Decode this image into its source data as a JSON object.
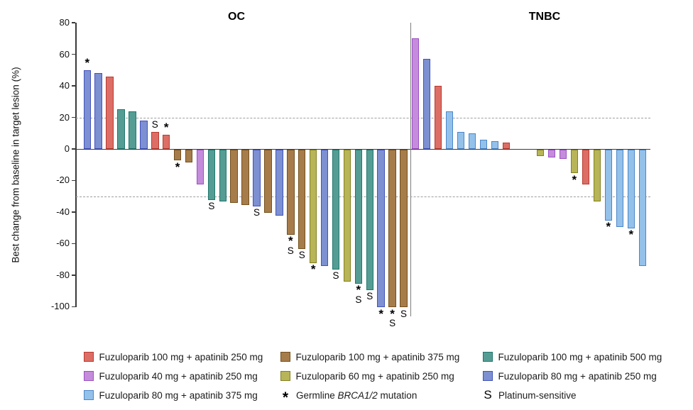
{
  "chart_data": {
    "type": "bar",
    "subtype": "waterfall",
    "ylabel": "Best change from baseline in target lesion (%)",
    "ylim": [
      -100,
      80
    ],
    "y_ticks": [
      80,
      60,
      40,
      20,
      0,
      -20,
      -40,
      -60,
      -80,
      -100
    ],
    "reference_lines": [
      20,
      -30
    ],
    "grid": "off",
    "marker_meanings": {
      "*": "Germline BRCA1/2 mutation",
      "S": "Platinum-sensitive"
    },
    "colors": {
      "red": {
        "fill": "#DC6E66",
        "stroke": "#B93A31"
      },
      "purple": {
        "fill": "#C48CDA",
        "stroke": "#9C50C4"
      },
      "lightblue": {
        "fill": "#93C1EA",
        "stroke": "#4E86C8"
      },
      "brown": {
        "fill": "#A77C4B",
        "stroke": "#73511E"
      },
      "olive": {
        "fill": "#B7B557",
        "stroke": "#84801F"
      },
      "teal": {
        "fill": "#559D94",
        "stroke": "#21776D"
      },
      "blue": {
        "fill": "#7C90D2",
        "stroke": "#4253BC"
      }
    },
    "groups": [
      {
        "name": "OC",
        "bars": [
          {
            "value": 50,
            "color_key": "blue",
            "markers": [
              "*"
            ]
          },
          {
            "value": 48,
            "color_key": "blue",
            "markers": []
          },
          {
            "value": 46,
            "color_key": "red",
            "markers": []
          },
          {
            "value": 25,
            "color_key": "teal",
            "markers": []
          },
          {
            "value": 24,
            "color_key": "teal",
            "markers": []
          },
          {
            "value": 18,
            "color_key": "blue",
            "markers": []
          },
          {
            "value": 11,
            "color_key": "red",
            "markers": [
              "S"
            ]
          },
          {
            "value": 9,
            "color_key": "red",
            "markers": [
              "*"
            ]
          },
          {
            "value": -7,
            "color_key": "brown",
            "markers": [
              "*"
            ]
          },
          {
            "value": -8,
            "color_key": "brown",
            "markers": []
          },
          {
            "value": -22,
            "color_key": "purple",
            "markers": []
          },
          {
            "value": -32,
            "color_key": "teal",
            "markers": [
              "S"
            ]
          },
          {
            "value": -33,
            "color_key": "teal",
            "markers": []
          },
          {
            "value": -34,
            "color_key": "brown",
            "markers": []
          },
          {
            "value": -35,
            "color_key": "brown",
            "markers": []
          },
          {
            "value": -36,
            "color_key": "blue",
            "markers": [
              "S"
            ]
          },
          {
            "value": -40,
            "color_key": "brown",
            "markers": []
          },
          {
            "value": -42,
            "color_key": "blue",
            "markers": []
          },
          {
            "value": -54,
            "color_key": "brown",
            "markers": [
              "*",
              "S"
            ]
          },
          {
            "value": -63,
            "color_key": "brown",
            "markers": [
              "S"
            ]
          },
          {
            "value": -72,
            "color_key": "olive",
            "markers": [
              "*"
            ]
          },
          {
            "value": -74,
            "color_key": "blue",
            "markers": []
          },
          {
            "value": -76,
            "color_key": "teal",
            "markers": [
              "S"
            ]
          },
          {
            "value": -84,
            "color_key": "olive",
            "markers": []
          },
          {
            "value": -85,
            "color_key": "teal",
            "markers": [
              "*",
              "S"
            ]
          },
          {
            "value": -89,
            "color_key": "teal",
            "markers": [
              "S"
            ]
          },
          {
            "value": -100,
            "color_key": "blue",
            "markers": [
              "*"
            ]
          },
          {
            "value": -100,
            "color_key": "brown",
            "markers": [
              "*",
              "S"
            ]
          },
          {
            "value": -100,
            "color_key": "brown",
            "markers": [
              "S"
            ]
          }
        ]
      },
      {
        "name": "TNBC",
        "bars": [
          {
            "value": 70,
            "color_key": "purple",
            "markers": []
          },
          {
            "value": 57,
            "color_key": "blue",
            "markers": []
          },
          {
            "value": 40,
            "color_key": "red",
            "markers": []
          },
          {
            "value": 24,
            "color_key": "lightblue",
            "markers": []
          },
          {
            "value": 11,
            "color_key": "lightblue",
            "markers": []
          },
          {
            "value": 10,
            "color_key": "lightblue",
            "markers": []
          },
          {
            "value": 6,
            "color_key": "lightblue",
            "markers": []
          },
          {
            "value": 5,
            "color_key": "lightblue",
            "markers": []
          },
          {
            "value": 4,
            "color_key": "red",
            "markers": []
          },
          {
            "value": 0,
            "color_key": null,
            "markers": []
          },
          {
            "value": 0,
            "color_key": null,
            "markers": []
          },
          {
            "value": -4,
            "color_key": "olive",
            "markers": []
          },
          {
            "value": -5,
            "color_key": "purple",
            "markers": []
          },
          {
            "value": -6,
            "color_key": "purple",
            "markers": []
          },
          {
            "value": -15,
            "color_key": "olive",
            "markers": [
              "*"
            ]
          },
          {
            "value": -22,
            "color_key": "red",
            "markers": []
          },
          {
            "value": -33,
            "color_key": "olive",
            "markers": []
          },
          {
            "value": -45,
            "color_key": "lightblue",
            "markers": [
              "*"
            ]
          },
          {
            "value": -49,
            "color_key": "lightblue",
            "markers": []
          },
          {
            "value": -50,
            "color_key": "lightblue",
            "markers": [
              "*"
            ]
          },
          {
            "value": -74,
            "color_key": "lightblue",
            "markers": []
          }
        ]
      }
    ],
    "legend": {
      "columns": [
        [
          {
            "type": "swatch",
            "color_key": "red",
            "label": "Fuzuloparib 100 mg + apatinib 250 mg"
          },
          {
            "type": "swatch",
            "color_key": "purple",
            "label": "Fuzuloparib 40 mg + apatinib 250 mg"
          },
          {
            "type": "swatch",
            "color_key": "lightblue",
            "label": "Fuzuloparib 80 mg + apatinib 375 mg"
          }
        ],
        [
          {
            "type": "swatch",
            "color_key": "brown",
            "label": "Fuzuloparib 100 mg + apatinib 375 mg"
          },
          {
            "type": "swatch",
            "color_key": "olive",
            "label": "Fuzuloparib 60 mg + apatinib 250 mg"
          },
          {
            "type": "symbol",
            "symbol": "*",
            "label_prefix": "Germline ",
            "label_italic": "BRCA1/2",
            "label_suffix": " mutation"
          }
        ],
        [
          {
            "type": "swatch",
            "color_key": "teal",
            "label": "Fuzuloparib 100 mg + apatinib 500 mg"
          },
          {
            "type": "swatch",
            "color_key": "blue",
            "label": "Fuzuloparib 80 mg + apatinib 250 mg"
          },
          {
            "type": "symbol",
            "symbol": "S",
            "label": "Platinum-sensitive"
          }
        ]
      ]
    }
  }
}
